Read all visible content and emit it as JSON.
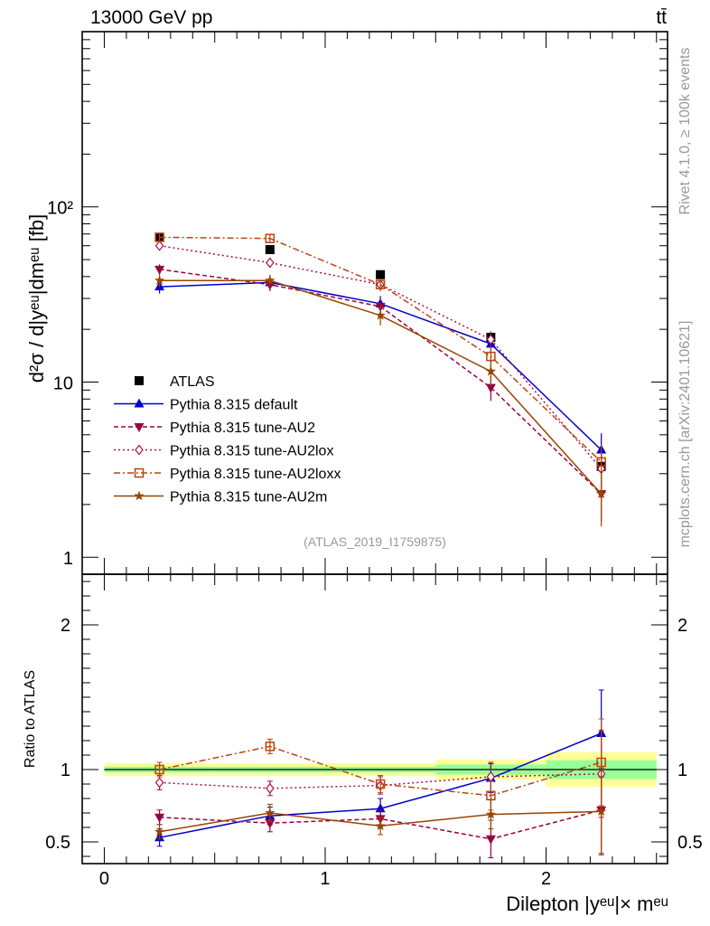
{
  "header": {
    "left": "13000 GeV pp",
    "right": "tt̄"
  },
  "side_labels": {
    "rivet": "Rivet 4.1.0, ≥ 100k events",
    "mcplots": "mcplots.cern.ch [arXiv:2401.10621]"
  },
  "watermark": "(ATLAS_2019_I1759875)",
  "colors": {
    "atlas": "#000000",
    "default": "#0000cc",
    "au2": "#990044",
    "au2lox": "#aa1144",
    "au2loxx": "#bb4411",
    "au2m": "#994400",
    "band_green": "#99ff99",
    "band_yellow": "#ffff99"
  },
  "chart_data": [
    {
      "id": "main",
      "type": "line",
      "yscale": "log",
      "ylabel": "d²σ / d|yᵉᵘ|dmᵉᵘ [fb]",
      "ylim": [
        0.8,
        1000
      ],
      "xlim": [
        -0.1,
        2.55
      ],
      "yticks": [
        "1",
        "10",
        "10²"
      ],
      "bin_edges": [
        0,
        0.5,
        1.0,
        1.5,
        2.0,
        2.5
      ],
      "x": [
        0.25,
        0.75,
        1.25,
        1.75,
        2.25
      ],
      "series": [
        {
          "key": "atlas",
          "name": "ATLAS",
          "values": [
            67,
            57,
            41,
            18,
            3.3
          ],
          "errors": [
            2,
            2,
            1.5,
            0.8,
            0.3
          ]
        },
        {
          "key": "default",
          "name": "Pythia 8.315 default",
          "values": [
            35,
            37,
            28,
            16.5,
            4.1
          ],
          "errors": [
            3,
            3,
            3,
            2,
            1.0
          ]
        },
        {
          "key": "au2",
          "name": "Pythia 8.315 tune-AU2",
          "values": [
            44,
            36,
            27,
            9.3,
            2.3
          ],
          "errors": [
            3,
            3,
            3,
            1.5,
            0.7
          ]
        },
        {
          "key": "au2lox",
          "name": "Pythia 8.315 tune-AU2lox",
          "values": [
            60,
            48,
            36,
            17.5,
            3.2
          ],
          "errors": [
            3,
            3,
            3,
            2,
            0.8
          ]
        },
        {
          "key": "au2loxx",
          "name": "Pythia 8.315 tune-AU2loxx",
          "values": [
            67,
            66,
            36,
            14,
            3.5
          ],
          "errors": [
            3,
            3,
            3,
            2,
            0.9
          ]
        },
        {
          "key": "au2m",
          "name": "Pythia 8.315 tune-AU2m",
          "values": [
            38,
            38,
            24,
            11.5,
            2.3
          ],
          "errors": [
            3,
            3,
            3,
            2,
            0.8
          ]
        }
      ]
    },
    {
      "id": "ratio",
      "type": "line",
      "ylabel": "Ratio to ATLAS",
      "xlabel": "Dilepton |yᵉᵘ|× mᵉᵘ",
      "ylim": [
        0.35,
        2.35
      ],
      "xticks": [
        "0",
        "1",
        "2"
      ],
      "yticks": [
        "0.5",
        "1",
        "2"
      ],
      "bands": {
        "green_half": [
          0.02,
          0.02,
          0.02,
          0.035,
          0.065
        ],
        "yellow_half": [
          0.045,
          0.045,
          0.045,
          0.07,
          0.12
        ]
      },
      "series": [
        {
          "key": "default",
          "values": [
            0.53,
            0.68,
            0.73,
            0.94,
            1.25
          ],
          "errors": [
            0.06,
            0.06,
            0.07,
            0.1,
            0.3
          ]
        },
        {
          "key": "au2",
          "values": [
            0.67,
            0.63,
            0.66,
            0.52,
            0.72
          ],
          "errors": [
            0.05,
            0.06,
            0.06,
            0.13,
            0.3
          ]
        },
        {
          "key": "au2lox",
          "values": [
            0.91,
            0.87,
            0.89,
            0.95,
            0.97
          ],
          "errors": [
            0.05,
            0.05,
            0.06,
            0.1,
            0.3
          ]
        },
        {
          "key": "au2loxx",
          "values": [
            1.0,
            1.16,
            0.9,
            0.82,
            1.05
          ],
          "errors": [
            0.05,
            0.05,
            0.06,
            0.1,
            0.3
          ]
        },
        {
          "key": "au2m",
          "values": [
            0.57,
            0.7,
            0.61,
            0.69,
            0.71
          ],
          "errors": [
            0.05,
            0.06,
            0.06,
            0.1,
            0.3
          ]
        }
      ]
    }
  ]
}
